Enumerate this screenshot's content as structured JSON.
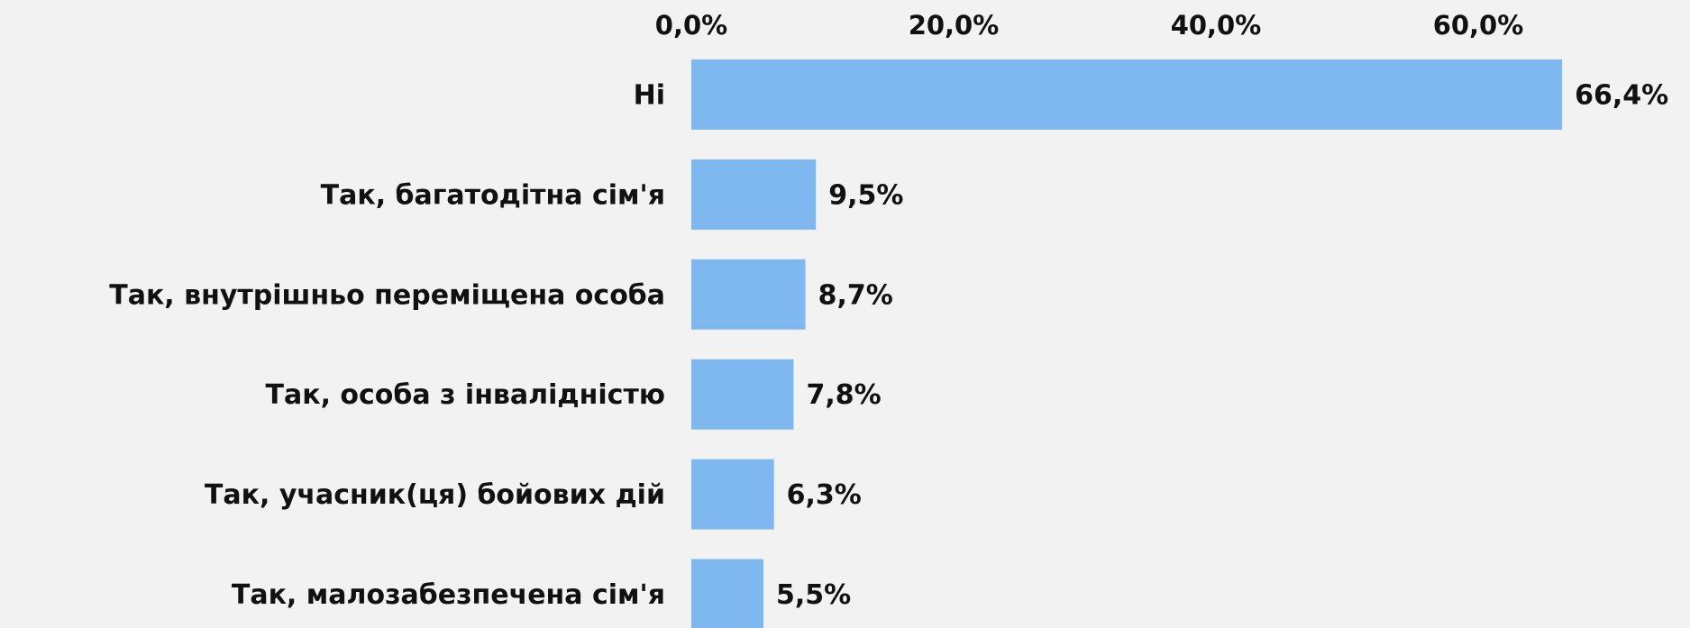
{
  "chart_data": {
    "type": "bar",
    "orientation": "horizontal",
    "categories": [
      "Ні",
      "Так, багатодітна сім'я",
      "Так, внутрішньо переміщена особа",
      "Так, особа з інвалідністю",
      "Так, учасник(ця) бойових дій",
      "Так, малозабезпечена сім'я"
    ],
    "values": [
      66.4,
      9.5,
      8.7,
      7.8,
      6.3,
      5.5
    ],
    "value_labels": [
      "66,4%",
      "9,5%",
      "8,7%",
      "7,8%",
      "6,3%",
      "5,5%"
    ],
    "color": "#7fb8f0",
    "xlim": [
      0,
      70
    ],
    "xticks": [
      {
        "value": 0,
        "label": "0,0%"
      },
      {
        "value": 20,
        "label": "20,0%"
      },
      {
        "value": 40,
        "label": "40,0%"
      },
      {
        "value": 60,
        "label": "60,0%"
      }
    ],
    "grid": false
  }
}
